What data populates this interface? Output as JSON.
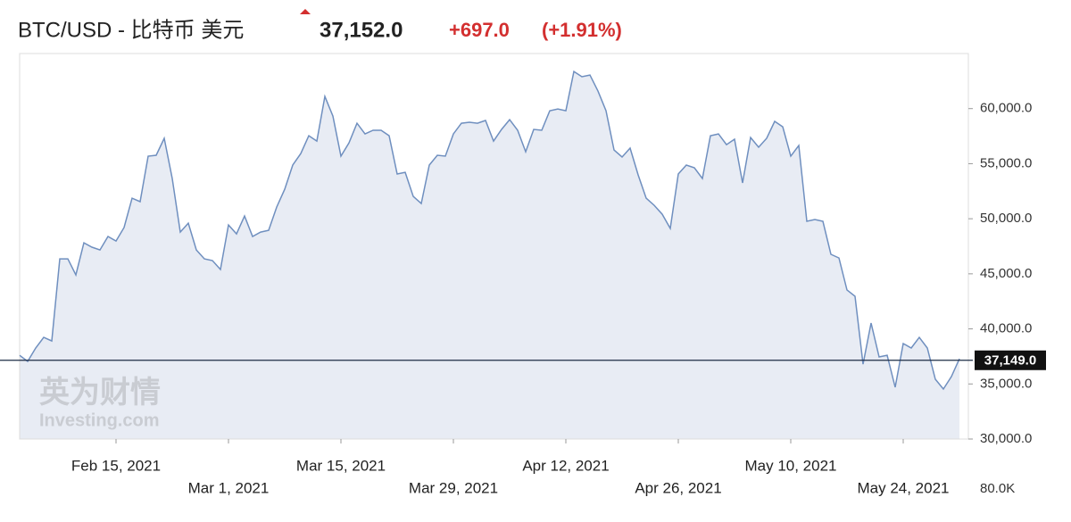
{
  "chart_data": {
    "type": "line",
    "header": {
      "title": "BTC/USD - 比特币 美元",
      "price": "37,152.0",
      "change": "+697.0",
      "change_pct": "(+1.91%)"
    },
    "color": "#6f8fbf",
    "fill_color": "#e8ecf4",
    "x": [
      "2021-02-03",
      "2021-02-04",
      "2021-02-05",
      "2021-02-06",
      "2021-02-07",
      "2021-02-08",
      "2021-02-09",
      "2021-02-10",
      "2021-02-11",
      "2021-02-12",
      "2021-02-13",
      "2021-02-14",
      "2021-02-15",
      "2021-02-16",
      "2021-02-17",
      "2021-02-18",
      "2021-02-19",
      "2021-02-20",
      "2021-02-21",
      "2021-02-22",
      "2021-02-23",
      "2021-02-24",
      "2021-02-25",
      "2021-02-26",
      "2021-02-27",
      "2021-02-28",
      "2021-03-01",
      "2021-03-02",
      "2021-03-03",
      "2021-03-04",
      "2021-03-05",
      "2021-03-06",
      "2021-03-07",
      "2021-03-08",
      "2021-03-09",
      "2021-03-10",
      "2021-03-11",
      "2021-03-12",
      "2021-03-13",
      "2021-03-14",
      "2021-03-15",
      "2021-03-16",
      "2021-03-17",
      "2021-03-18",
      "2021-03-19",
      "2021-03-20",
      "2021-03-21",
      "2021-03-22",
      "2021-03-23",
      "2021-03-24",
      "2021-03-25",
      "2021-03-26",
      "2021-03-27",
      "2021-03-28",
      "2021-03-29",
      "2021-03-30",
      "2021-03-31",
      "2021-04-01",
      "2021-04-02",
      "2021-04-03",
      "2021-04-04",
      "2021-04-05",
      "2021-04-06",
      "2021-04-07",
      "2021-04-08",
      "2021-04-09",
      "2021-04-10",
      "2021-04-11",
      "2021-04-12",
      "2021-04-13",
      "2021-04-14",
      "2021-04-15",
      "2021-04-16",
      "2021-04-17",
      "2021-04-18",
      "2021-04-19",
      "2021-04-20",
      "2021-04-21",
      "2021-04-22",
      "2021-04-23",
      "2021-04-24",
      "2021-04-25",
      "2021-04-26",
      "2021-04-27",
      "2021-04-28",
      "2021-04-29",
      "2021-04-30",
      "2021-05-01",
      "2021-05-02",
      "2021-05-03",
      "2021-05-04",
      "2021-05-05",
      "2021-05-06",
      "2021-05-07",
      "2021-05-08",
      "2021-05-09",
      "2021-05-10",
      "2021-05-11",
      "2021-05-12",
      "2021-05-13",
      "2021-05-14",
      "2021-05-15",
      "2021-05-16",
      "2021-05-17",
      "2021-05-18",
      "2021-05-19",
      "2021-05-20",
      "2021-05-21",
      "2021-05-22",
      "2021-05-23",
      "2021-05-24",
      "2021-05-25",
      "2021-05-26",
      "2021-05-27",
      "2021-05-28",
      "2021-05-29",
      "2021-05-30",
      "2021-05-31"
    ],
    "values": [
      37600,
      37050,
      38260,
      39230,
      38900,
      46360,
      46360,
      44900,
      47820,
      47420,
      47170,
      48390,
      47980,
      49200,
      51870,
      51550,
      55680,
      55760,
      57300,
      53650,
      48790,
      49600,
      47170,
      46360,
      46200,
      45390,
      49440,
      48630,
      50250,
      48390,
      48790,
      48950,
      51060,
      52680,
      54870,
      55920,
      57540,
      57050,
      61100,
      59320,
      55680,
      56890,
      58670,
      57700,
      58030,
      58030,
      57540,
      54060,
      54220,
      52030,
      51380,
      54870,
      55760,
      55680,
      57700,
      58670,
      58760,
      58670,
      58920,
      57050,
      58110,
      59000,
      58030,
      56080,
      58110,
      58030,
      59810,
      59970,
      59810,
      63370,
      62890,
      63050,
      61590,
      59810,
      56240,
      55600,
      56410,
      53980,
      51870,
      51220,
      50410,
      49120,
      54060,
      54870,
      54630,
      53650,
      57540,
      57700,
      56730,
      57220,
      53250,
      57380,
      56490,
      57300,
      58840,
      58350,
      55680,
      56650,
      49770,
      49930,
      49770,
      46770,
      46440,
      43530,
      42960,
      36800,
      40530,
      37450,
      37610,
      34700,
      38670,
      38260,
      39230,
      38260,
      35430,
      34540,
      35670,
      37290
    ],
    "xlim": [
      "2021-02-03",
      "2021-06-01"
    ],
    "xticks": [
      {
        "value": "2021-02-15",
        "label": "Feb 15, 2021"
      },
      {
        "value": "2021-03-01",
        "label": "Mar 1, 2021"
      },
      {
        "value": "2021-03-15",
        "label": "Mar 15, 2021"
      },
      {
        "value": "2021-03-29",
        "label": "Mar 29, 2021"
      },
      {
        "value": "2021-04-12",
        "label": "Apr 12, 2021"
      },
      {
        "value": "2021-04-26",
        "label": "Apr 26, 2021"
      },
      {
        "value": "2021-05-10",
        "label": "May 10, 2021"
      },
      {
        "value": "2021-05-24",
        "label": "May 24, 2021"
      }
    ],
    "ylim": [
      30000,
      65000
    ],
    "yticks": [
      {
        "value": 30000,
        "label": "30,000.0"
      },
      {
        "value": 35000,
        "label": "35,000.0"
      },
      {
        "value": 40000,
        "label": "40,000.0"
      },
      {
        "value": 45000,
        "label": "45,000.0"
      },
      {
        "value": 50000,
        "label": "50,000.0"
      },
      {
        "value": 55000,
        "label": "55,000.0"
      },
      {
        "value": 60000,
        "label": "60,000.0"
      }
    ],
    "current_price_line": {
      "value": 37149,
      "label": "37,149.0"
    },
    "volume_axis_label": "80.0K",
    "watermark": [
      "英为财情",
      "Investing.com"
    ]
  }
}
